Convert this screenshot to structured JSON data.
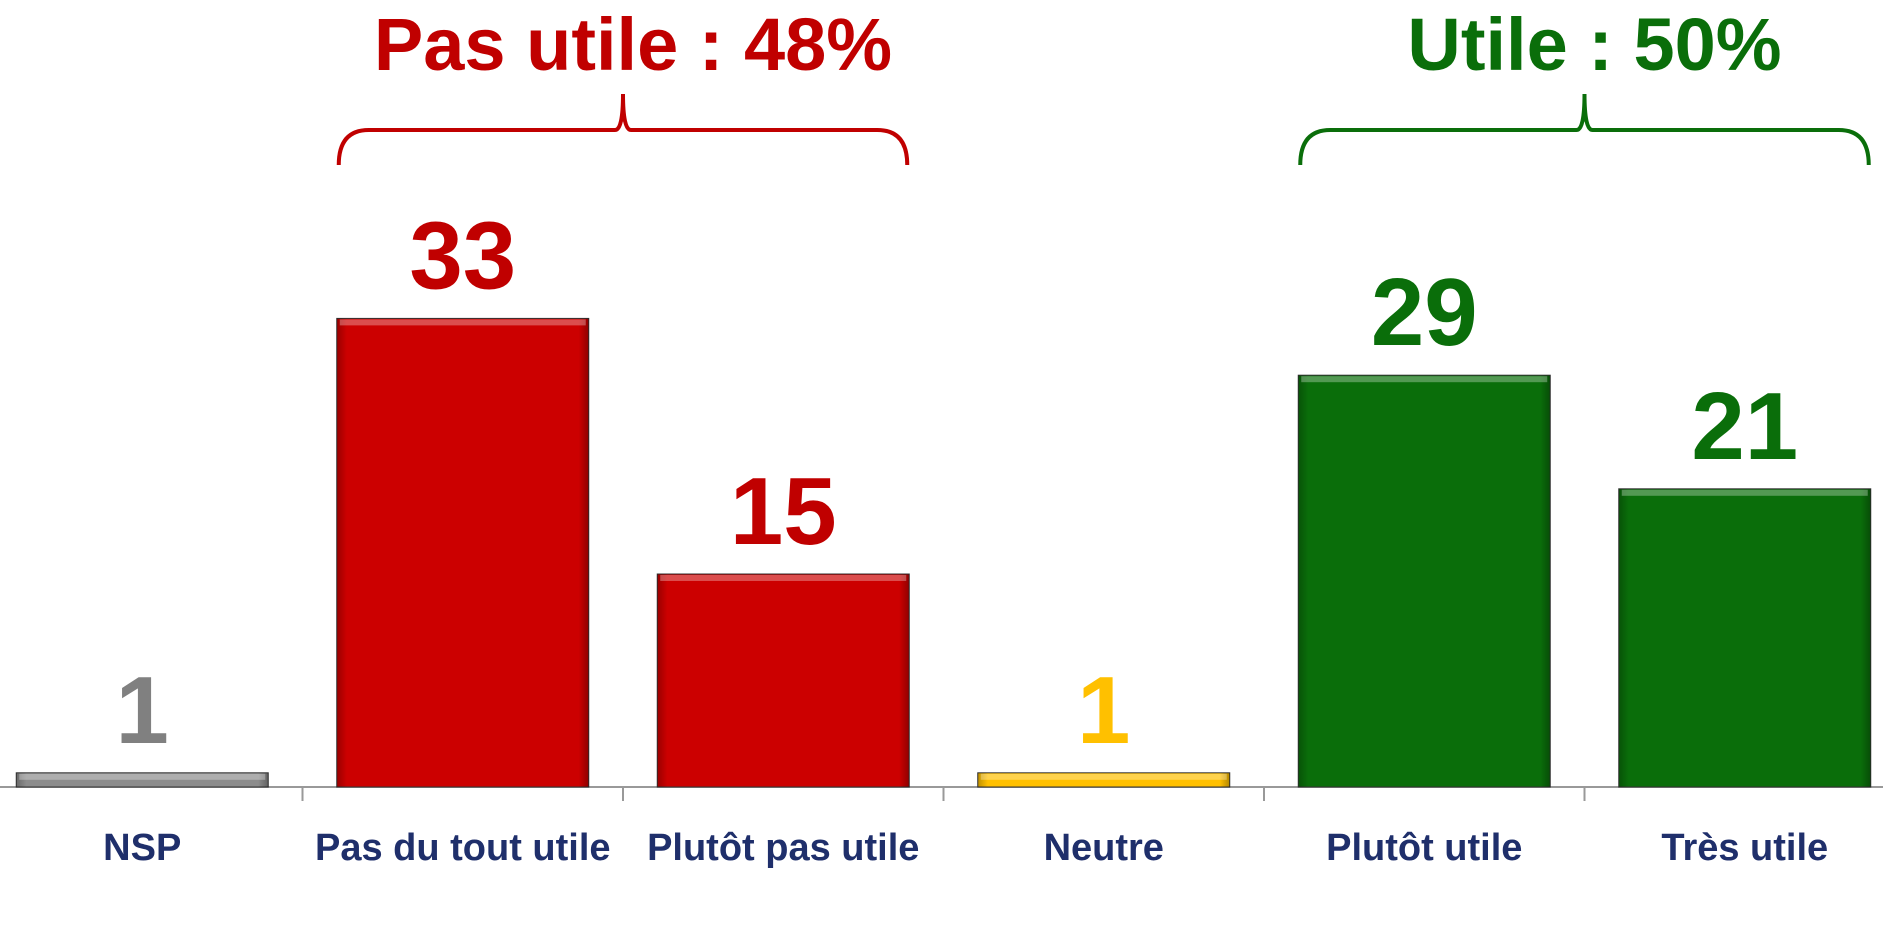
{
  "chart_data": {
    "type": "bar",
    "categories": [
      "NSP",
      "Pas du tout utile",
      "Plutôt pas utile",
      "Neutre",
      "Plutôt utile",
      "Très utile"
    ],
    "values": [
      1,
      33,
      15,
      1,
      29,
      21
    ],
    "colors": [
      "#8c8c8c",
      "#cc0000",
      "#cc0000",
      "#ffc000",
      "#0a6e0a",
      "#0a6e0a"
    ],
    "label_colors": [
      "#808080",
      "#c00000",
      "#c00000",
      "#ffc000",
      "#0a6e0a",
      "#0a6e0a"
    ],
    "ylim": [
      0,
      55
    ],
    "annotations": [
      {
        "text": "Pas utile : 48%",
        "color": "#c00000"
      },
      {
        "text": "Utile : 50%",
        "color": "#0a6e0a"
      }
    ]
  }
}
